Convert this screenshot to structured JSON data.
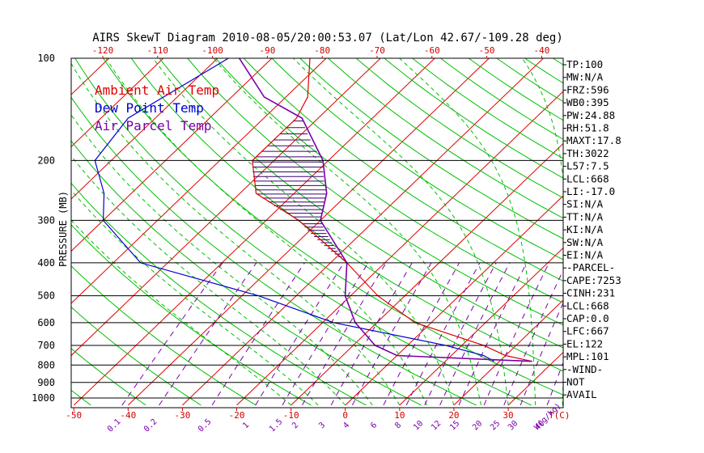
{
  "chart_data": {
    "type": "line",
    "title": "AIRS SkewT Diagram 2010-08-05/20:00:53.07 (Lat/Lon 42.67/-109.28 deg)",
    "ylabel": "PRESSURE (MB)",
    "x_unit_label": "T(C)",
    "mixing_ratio_unit_label": "W(g/kg)",
    "pressure_ticks": [
      100,
      200,
      300,
      400,
      500,
      600,
      700,
      800,
      900,
      1000
    ],
    "temp_ticks_bottom": [
      -50,
      -40,
      -30,
      -20,
      -10,
      0,
      10,
      20,
      30
    ],
    "temp_ticks_top": [
      -120,
      -110,
      -100,
      -90,
      -80,
      -70,
      -60,
      -50,
      -40
    ],
    "mixing_ratio_ticks": [
      "0.1",
      "0.2",
      "0.5",
      "1",
      "1.5",
      "2",
      "3",
      "4",
      "6",
      "8",
      "10",
      "12",
      "15",
      "20",
      "25",
      "30",
      "40"
    ],
    "legend": [
      {
        "label": "Ambient Air Temp",
        "color": "#e00000"
      },
      {
        "label": "Dew Point Temp",
        "color": "#0000d0"
      },
      {
        "label": "Air Parcel Temp",
        "color": "#7a00a8"
      }
    ],
    "series": [
      {
        "name": "Ambient Air Temp",
        "color": "#e00000",
        "points": [
          [
            100,
            -73
          ],
          [
            130,
            -66
          ],
          [
            150,
            -64
          ],
          [
            200,
            -64
          ],
          [
            250,
            -57
          ],
          [
            300,
            -44
          ],
          [
            400,
            -27
          ],
          [
            500,
            -15
          ],
          [
            600,
            -3
          ],
          [
            700,
            14
          ],
          [
            750,
            20
          ],
          [
            780,
            26
          ]
        ]
      },
      {
        "name": "Dew Point Temp",
        "color": "#0000d0",
        "points": [
          [
            100,
            -88
          ],
          [
            150,
            -95
          ],
          [
            200,
            -93
          ],
          [
            250,
            -85
          ],
          [
            300,
            -80
          ],
          [
            400,
            -65
          ],
          [
            500,
            -37
          ],
          [
            600,
            -18
          ],
          [
            700,
            7
          ],
          [
            750,
            16
          ],
          [
            780,
            19
          ]
        ]
      },
      {
        "name": "Air Parcel Temp",
        "color": "#7a00a8",
        "points": [
          [
            100,
            -86
          ],
          [
            130,
            -74
          ],
          [
            150,
            -63
          ],
          [
            200,
            -51
          ],
          [
            250,
            -44
          ],
          [
            300,
            -40
          ],
          [
            400,
            -27
          ],
          [
            500,
            -21
          ],
          [
            600,
            -14
          ],
          [
            700,
            -6
          ],
          [
            750,
            0
          ],
          [
            780,
            26
          ]
        ]
      }
    ],
    "grid": true,
    "legend_position": "top-left"
  },
  "indices": [
    "TP:100",
    "MW:N/A",
    "FRZ:596",
    "WB0:395",
    "PW:24.88",
    "RH:51.8",
    "MAXT:17.8",
    "TH:3022",
    "L57:7.5",
    "LCL:668",
    "LI:-17.0",
    "SI:N/A",
    "TT:N/A",
    "KI:N/A",
    "SW:N/A",
    "EI:N/A",
    "-PARCEL-",
    "CAPE:7253",
    "CINH:231",
    "LCL:668",
    "CAP:0.0",
    "LFC:667",
    "EL:122",
    "MPL:101",
    "-WIND-",
    "NOT",
    "AVAIL"
  ],
  "colors": {
    "isotherm": "#e00000",
    "dry_adiabat": "#00c000",
    "moist_adiabat": "#00c000",
    "mixing_ratio": "#7a00a8",
    "isobar": "#000000",
    "hatch": "#3a0070"
  }
}
